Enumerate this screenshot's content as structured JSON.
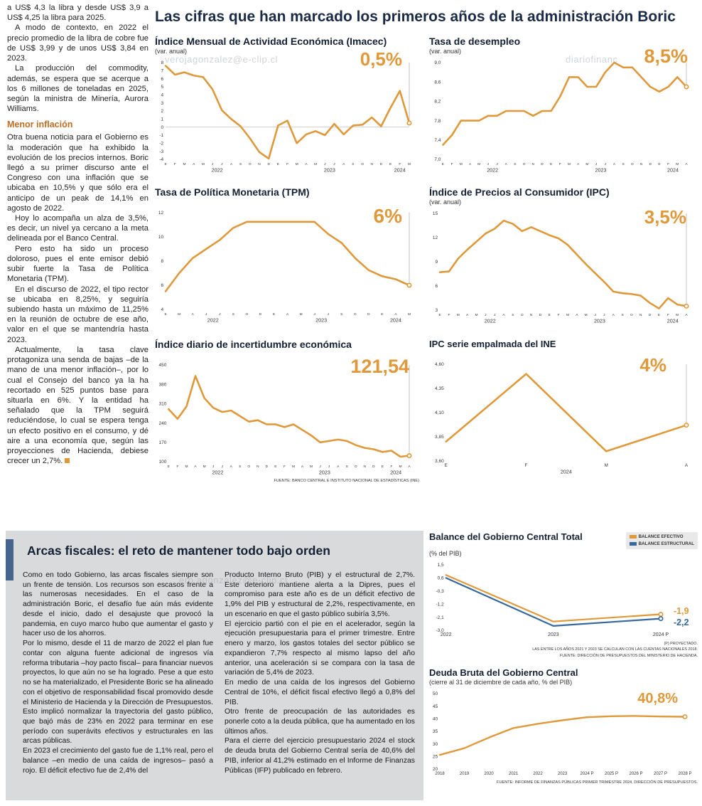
{
  "headline": "Las cifras que han marcado los primeros años de la administración Boric",
  "watermarks": [
    "verojagonzalez@e-clip.cl",
    "diariofinanc",
    "ero.agonzalez@e-clip.cl"
  ],
  "colors": {
    "accent_orange": "#e0993a",
    "line_blue": "#35689c",
    "headline_navy": "#1b2b45",
    "subhead_orange": "#bc6d22",
    "panel_gray": "#d9dadc",
    "accent_bar_blue": "#46658c"
  },
  "intro": {
    "p1": "a US$ 4,3 la libra y desde US$ 3,9 a US$ 4,25 la libra para 2025.",
    "p2": "A modo de contexto, en 2022 el precio promedio de la libra de cobre fue de US$ 3,99 y de unos US$ 3,84 en 2023.",
    "p3": "La producción del commodity, además, se espera que se acerque a los 6 millones de toneladas en 2025, según la ministra de Minería, Aurora Williams.",
    "subhead": "Menor inflación",
    "p4": "Otra buena noticia para el Gobierno es la moderación que ha exhibido la evolución de los precios internos. Boric llegó a su primer discurso ante el Congreso con una inflación que se ubicaba en 10,5% y que sólo era el anticipo de un peak de 14,1% en agosto de 2022.",
    "p5": "Hoy lo acompaña un alza de 3,5%, es decir, un nivel ya cercano a la meta delineada por el Banco Central.",
    "p6": "Pero esto ha sido un proceso doloroso, pues el ente emisor debió subir fuerte la Tasa de Política Monetaria (TPM).",
    "p7": "En el discurso de 2022, el tipo rector se ubicaba en 8,25%, y seguiría subiendo hasta un máximo de 11,25% en la reunión de octubre de ese año, valor en el que se mantendría hasta 2023.",
    "p8": "Actualmente, la tasa clave protagoniza una senda de bajas –de la mano de una menor inflación–, por lo cual el Consejo del banco ya la ha recortado en 525 puntos base para situarla en 6%. Y la entidad ha señalado que la TPM seguirá reduciéndose, lo cual se espera tenga un efecto positivo en el consumo, y dé aire a una economía que, según las proyecciones de Hacienda, debiese crecer un 2,7%."
  },
  "sources": {
    "top_charts": "FUENTE: BANCO CENTRAL E INSTITUTO NACIONAL DE ESTADÍSTICAS (INE)"
  },
  "fiscal": {
    "headline": "Arcas fiscales: el reto de mantener todo bajo orden",
    "col1_p1": "Como en todo Gobierno, las arcas fiscales siempre son un frente de tensión. Los recursos son escasos frente a las numerosas necesidades. En el caso de la administración Boric, el desafío fue aún más evidente desde el inicio, dado el desajuste que provocó la pandemia, en cuyo marco hubo que aumentar el gasto y hacer uso de los ahorros.",
    "col1_p2": "Por lo mismo, desde el 11 de marzo de 2022 el plan fue contar con alguna fuente adicional de ingresos vía reforma tributaria –hoy pacto fiscal– para financiar nuevos proyectos, lo que aún no se ha logrado. Pese a que esto no se ha materializado, el Presidente Boric se ha alineado con el objetivo de responsabilidad fiscal promovido desde el Ministerio de Hacienda y la Dirección de Presupuestos. Esto implicó normalizar la trayectoria del gasto público, que bajó más de 23% en 2022 para terminar en ese período con superávits efectivos y estructurales en las arcas públicas.",
    "col1_p3": "En 2023 el crecimiento del gasto fue de 1,1% real, pero el balance –en medio de una caída de ingresos– pasó a rojo. El déficit efectivo fue de 2,4% del",
    "col2_p1": "Producto Interno Bruto (PIB) y el estructural de 2,7%. Este deterioro mantiene alerta a la Dipres, pues el compromiso para este año es de un déficit efectivo de 1,9% del PIB y estructural de 2,2%, respectivamente, en un escenario en que el gasto público subiría 3,5%.",
    "col2_p2": "El ejercicio partió con el pie en el acelerador, según la ejecución presupuestaria para el primer trimestre. Entre enero y marzo, los gastos totales del sector público se expandieron 7,7% respecto al mismo lapso del año anterior, una aceleración si se compara con la tasa de variación de 5,4% de 2023.",
    "col2_p3": "En medio de una caída de los ingresos del Gobierno Central de 10%, el déficit fiscal efectivo llegó a 0,8% del PIB.",
    "col2_p4": "Otro frente de preocupación de las autoridades es ponerle coto a la deuda pública, que ha aumentado en los últimos años.",
    "col2_p5": "Para el cierre del ejercicio presupuestario 2024 el stock de deuda bruta del Gobierno Central sería de 40,6% del PIB, inferior al 41,2% estimado en el Informe de Finanzas Públicas (IFP) publicado en febrero."
  },
  "chart_data": [
    {
      "id": "imacec",
      "type": "line",
      "title": "Índice Mensual de Actividad Económica (Imacec)",
      "subtitle": "(var. anual)",
      "callout": "0,5%",
      "x": [
        "E",
        "F",
        "M",
        "A",
        "M",
        "J",
        "J",
        "A",
        "S",
        "O",
        "N",
        "D",
        "E",
        "F",
        "M",
        "A",
        "M",
        "J",
        "J",
        "A",
        "S",
        "O",
        "N",
        "D",
        "E",
        "F",
        "M"
      ],
      "years": [
        {
          "label": "2022",
          "from": 0,
          "to": 11
        },
        {
          "label": "2023",
          "from": 12,
          "to": 23
        },
        {
          "label": "2024",
          "from": 24,
          "to": 26
        }
      ],
      "ylim": [
        -4,
        8
      ],
      "zero_line": true,
      "guide": true,
      "yticks": [
        {
          "v": 8,
          "label": "8"
        },
        {
          "v": 7,
          "label": "7"
        },
        {
          "v": 6,
          "label": "6"
        },
        {
          "v": 5,
          "label": "5"
        },
        {
          "v": 4,
          "label": "4"
        },
        {
          "v": 3,
          "label": "3"
        },
        {
          "v": 2,
          "label": "2"
        },
        {
          "v": 1,
          "label": "1"
        },
        {
          "v": 0,
          "label": "0"
        },
        {
          "v": -1,
          "label": "-1"
        },
        {
          "v": -2,
          "label": "-2"
        },
        {
          "v": -3,
          "label": "-3"
        },
        {
          "v": -4,
          "label": "-4"
        }
      ],
      "series": [
        {
          "name": "Imacec",
          "color": "#e0993a",
          "values": [
            7.6,
            6.5,
            6.8,
            6.4,
            6.2,
            4.7,
            2.1,
            1.0,
            0.1,
            -1.4,
            -3.1,
            -3.9,
            0.2,
            0.8,
            -2.0,
            -0.9,
            -0.5,
            -1.0,
            0.4,
            -0.9,
            0.2,
            0.3,
            1.2,
            0.1,
            2.4,
            4.5,
            0.5
          ]
        }
      ]
    },
    {
      "id": "desempleo",
      "type": "line",
      "title": "Tasa de desempleo",
      "subtitle": "(var. anual)",
      "callout": "8,5%",
      "x": [
        "E",
        "F",
        "M",
        "A",
        "M",
        "J",
        "J",
        "A",
        "S",
        "O",
        "N",
        "D",
        "E",
        "F",
        "M",
        "A",
        "M",
        "J",
        "J",
        "A",
        "S",
        "O",
        "N",
        "D",
        "E",
        "F",
        "M",
        "A"
      ],
      "years": [
        {
          "label": "2022",
          "from": 0,
          "to": 11
        },
        {
          "label": "2023",
          "from": 12,
          "to": 23
        },
        {
          "label": "2024",
          "from": 24,
          "to": 27
        }
      ],
      "ylim": [
        7.0,
        9.0
      ],
      "guide": true,
      "yticks": [
        {
          "v": 9.0,
          "label": "9,0"
        },
        {
          "v": 8.6,
          "label": "8,6"
        },
        {
          "v": 8.2,
          "label": "8,2"
        },
        {
          "v": 7.8,
          "label": "7,8"
        },
        {
          "v": 7.4,
          "label": "7,4"
        },
        {
          "v": 7.0,
          "label": "7,0"
        }
      ],
      "series": [
        {
          "name": "Tasa de desempleo",
          "color": "#e0993a",
          "values": [
            7.3,
            7.5,
            7.8,
            7.8,
            7.8,
            7.9,
            7.9,
            8.0,
            8.0,
            8.0,
            7.9,
            8.0,
            8.0,
            8.3,
            8.7,
            8.7,
            8.5,
            8.5,
            8.8,
            9.0,
            8.9,
            8.9,
            8.7,
            8.5,
            8.4,
            8.5,
            8.7,
            8.5
          ]
        }
      ]
    },
    {
      "id": "tpm",
      "type": "line",
      "title": "Tasa de Política Monetaria (TPM)",
      "callout": "6%",
      "x": [
        "E",
        "M",
        "A",
        "J",
        "J",
        "S",
        "O",
        "D",
        "E",
        "A",
        "M",
        "J",
        "J",
        "S",
        "O",
        "D",
        "E",
        "A",
        "M"
      ],
      "years": [
        {
          "label": "2022",
          "from": 0,
          "to": 7
        },
        {
          "label": "2023",
          "from": 8,
          "to": 15
        },
        {
          "label": "2024",
          "from": 16,
          "to": 18
        }
      ],
      "ylim": [
        4,
        12
      ],
      "guide": true,
      "yticks": [
        {
          "v": 12,
          "label": "12"
        },
        {
          "v": 10,
          "label": "10"
        },
        {
          "v": 8,
          "label": "8"
        },
        {
          "v": 6,
          "label": "6"
        },
        {
          "v": 4,
          "label": "4"
        }
      ],
      "series": [
        {
          "name": "TPM",
          "color": "#e0993a",
          "values": [
            5.5,
            7.0,
            8.25,
            9.0,
            9.75,
            10.75,
            11.25,
            11.25,
            11.25,
            11.25,
            11.25,
            11.25,
            10.25,
            9.5,
            8.25,
            7.25,
            6.75,
            6.5,
            6.0
          ]
        }
      ]
    },
    {
      "id": "ipc",
      "type": "line",
      "title": "Índice de Precios al Consumidor (IPC)",
      "subtitle": "(var. anual)",
      "callout": "3,5%",
      "x": [
        "E",
        "F",
        "M",
        "A",
        "M",
        "J",
        "J",
        "A",
        "S",
        "O",
        "N",
        "D",
        "E",
        "F",
        "M",
        "A",
        "M",
        "J",
        "J",
        "A",
        "S",
        "O",
        "N",
        "D",
        "E",
        "F",
        "M",
        "A"
      ],
      "years": [
        {
          "label": "2022",
          "from": 0,
          "to": 11
        },
        {
          "label": "2023",
          "from": 12,
          "to": 23
        },
        {
          "label": "2024",
          "from": 24,
          "to": 27
        }
      ],
      "ylim": [
        3,
        15
      ],
      "guide": true,
      "yticks": [
        {
          "v": 15,
          "label": "15"
        },
        {
          "v": 12,
          "label": "12"
        },
        {
          "v": 9,
          "label": "9"
        },
        {
          "v": 6,
          "label": "6"
        },
        {
          "v": 3,
          "label": "3"
        }
      ],
      "series": [
        {
          "name": "IPC",
          "color": "#e0993a",
          "values": [
            7.7,
            7.8,
            9.4,
            10.5,
            11.5,
            12.5,
            13.1,
            14.1,
            13.7,
            12.8,
            13.3,
            12.8,
            12.3,
            11.9,
            11.1,
            9.9,
            8.7,
            7.6,
            6.5,
            5.3,
            5.1,
            5.0,
            4.8,
            3.9,
            3.2,
            4.5,
            3.7,
            3.5
          ]
        }
      ]
    },
    {
      "id": "incertidumbre",
      "type": "line",
      "title": "Índice diario de incertidumbre económica",
      "callout": "121,54",
      "x": [
        "E",
        "F",
        "M",
        "A",
        "M",
        "J",
        "J",
        "A",
        "S",
        "O",
        "N",
        "D",
        "E",
        "F",
        "M",
        "A",
        "M",
        "J",
        "J",
        "A",
        "S",
        "O",
        "N",
        "D",
        "E",
        "F",
        "M",
        "A"
      ],
      "years": [
        {
          "label": "2022",
          "from": 0,
          "to": 11
        },
        {
          "label": "2023",
          "from": 12,
          "to": 23
        },
        {
          "label": "2024",
          "from": 24,
          "to": 27
        }
      ],
      "ylim": [
        100,
        450
      ],
      "guide": true,
      "yticks": [
        {
          "v": 450,
          "label": "450"
        },
        {
          "v": 380,
          "label": "380"
        },
        {
          "v": 310,
          "label": "310"
        },
        {
          "v": 240,
          "label": "240"
        },
        {
          "v": 170,
          "label": "170"
        },
        {
          "v": 100,
          "label": "100"
        }
      ],
      "series": [
        {
          "name": "Incertidumbre económica",
          "color": "#e0993a",
          "values": [
            290,
            255,
            300,
            410,
            330,
            295,
            280,
            285,
            265,
            245,
            250,
            235,
            235,
            225,
            235,
            215,
            195,
            170,
            175,
            180,
            175,
            160,
            150,
            145,
            135,
            140,
            118,
            121.54
          ]
        }
      ]
    },
    {
      "id": "empalmada",
      "type": "line",
      "title": "IPC serie empalmada del INE",
      "callout": "4%",
      "x": [
        "E",
        "F",
        "M",
        "A"
      ],
      "years": [
        {
          "label": "2024",
          "from": 0,
          "to": 3
        }
      ],
      "ylim": [
        3.6,
        4.6
      ],
      "guide": true,
      "yticks": [
        {
          "v": 4.6,
          "label": "4,60"
        },
        {
          "v": 4.35,
          "label": "4,35"
        },
        {
          "v": 4.1,
          "label": "4,10"
        },
        {
          "v": 3.85,
          "label": "3,85"
        },
        {
          "v": 3.6,
          "label": "3,60"
        }
      ],
      "series": [
        {
          "name": "IPC serie empalmada",
          "color": "#e0993a",
          "values": [
            3.8,
            4.5,
            3.7,
            3.97
          ]
        }
      ]
    },
    {
      "id": "balance",
      "type": "line",
      "title": "Balance del Gobierno Central Total",
      "subtitle": "(% del PIB)",
      "x": [
        "2022",
        "2023",
        "2024 P"
      ],
      "xfont": 7,
      "ylim": [
        -3.0,
        1.5
      ],
      "yticks": [
        {
          "v": 1.5,
          "label": "1,5"
        },
        {
          "v": 0.6,
          "label": "0,6"
        },
        {
          "v": -0.3,
          "label": "-0,3"
        },
        {
          "v": -1.2,
          "label": "-1,2"
        },
        {
          "v": -2.1,
          "label": "-2,1"
        },
        {
          "v": -3.0,
          "label": "-3,0"
        }
      ],
      "series": [
        {
          "name": "BALANCE EFECTIVO",
          "color": "#e0993a",
          "width": 2.2,
          "values": [
            0.8,
            -2.4,
            -1.9
          ]
        },
        {
          "name": "BALANCE ESTRUCTURAL",
          "color": "#35689c",
          "width": 2.2,
          "values": [
            0.6,
            -2.7,
            -2.2
          ]
        }
      ],
      "end_labels": {
        "efectivo": "-1,9",
        "estructural": "-2,2"
      },
      "notes": [
        "(P) PROYECTADO.",
        "LAS ENTRE LOS AÑOS 2021 Y 2023 SE CALCULAN CON LAS CUENTAS NACIONALES 2018.",
        "FUENTE: DIRECCIÓN DE PRESUPUESTOS DEL MINISTERIO DE HACIENDA."
      ]
    },
    {
      "id": "deuda",
      "type": "line",
      "title": "Deuda Bruta del Gobierno Central",
      "subtitle": "(cierre al 31 de diciembre de cada año, % del PIB)",
      "callout": "40,8%",
      "x": [
        "2018",
        "2019",
        "2020",
        "2021",
        "2022",
        "2023",
        "2024 P",
        "2025 P",
        "2026 P",
        "2027 P",
        "2028 P"
      ],
      "xfont": 6,
      "ylim": [
        20,
        50
      ],
      "yticks": [
        {
          "v": 50,
          "label": "50"
        },
        {
          "v": 45,
          "label": "45"
        },
        {
          "v": 40,
          "label": "40"
        },
        {
          "v": 35,
          "label": "35"
        },
        {
          "v": 30,
          "label": "30"
        },
        {
          "v": 25,
          "label": "25"
        },
        {
          "v": 20,
          "label": "20"
        }
      ],
      "series": [
        {
          "name": "Deuda bruta",
          "color": "#e0993a",
          "width": 2.4,
          "values": [
            25.6,
            28.3,
            32.5,
            36.3,
            38.0,
            39.4,
            40.6,
            41.0,
            41.1,
            40.9,
            40.8
          ]
        }
      ],
      "source": "FUENTE: INFORME DE FINANZAS PÚBLICAS PRIMER TRIMESTRE 2024, DIRECCIÓN DE PRESUPUESTOS."
    }
  ]
}
